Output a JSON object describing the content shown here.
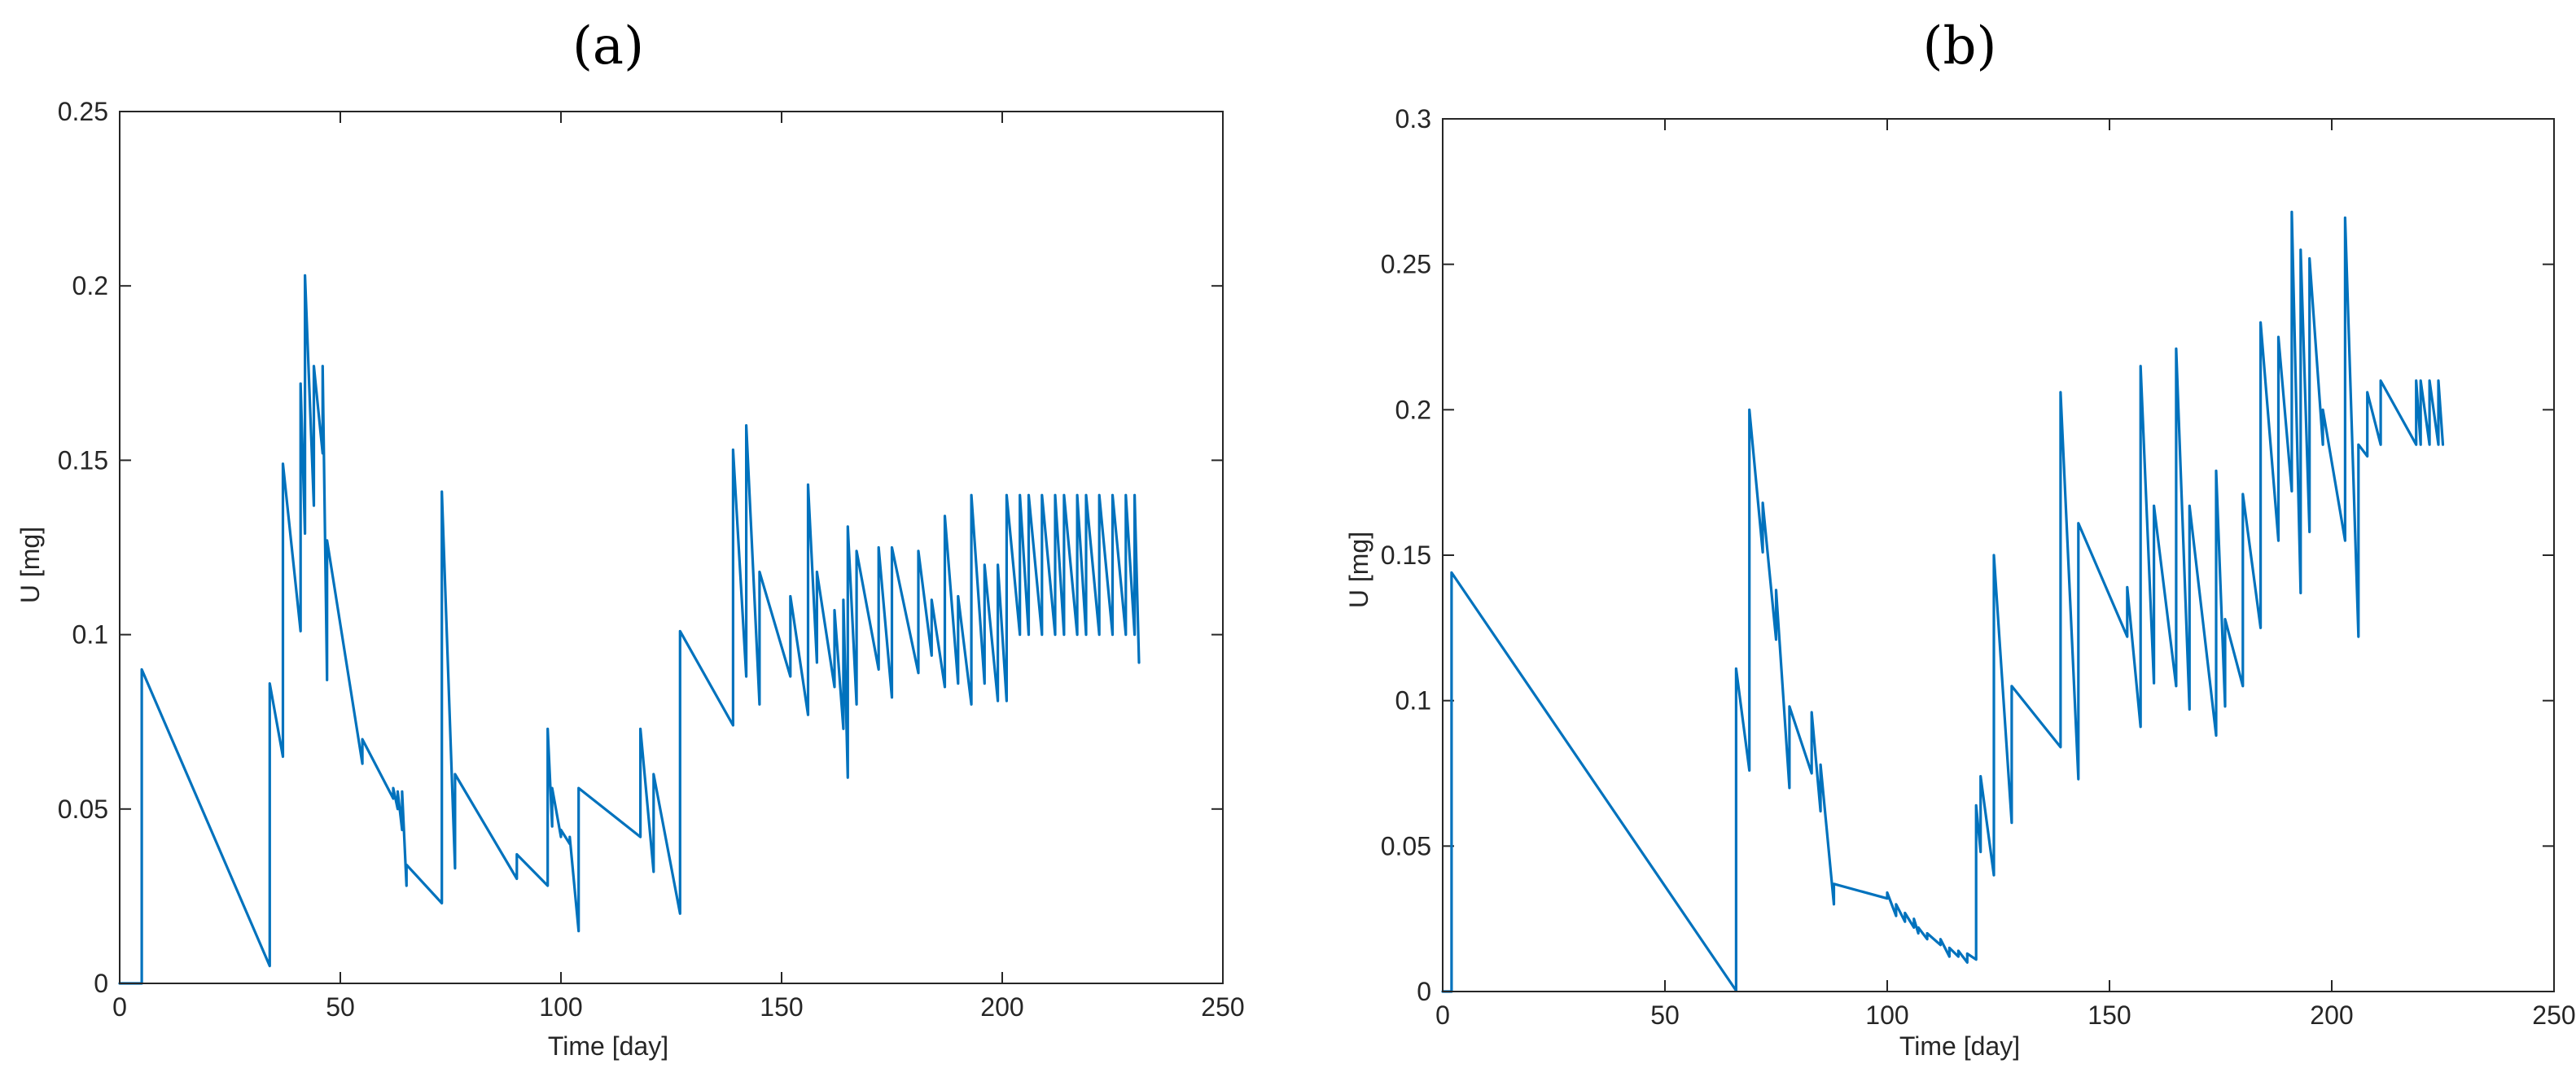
{
  "chart_data": [
    {
      "type": "line",
      "title": "(a)",
      "xlabel": "Time [day]",
      "ylabel": "U [mg]",
      "xlim": [
        0,
        250
      ],
      "ylim": [
        0,
        0.25
      ],
      "xticks": [
        0,
        50,
        100,
        150,
        200,
        250
      ],
      "yticks": [
        0,
        0.05,
        0.1,
        0.15,
        0.2,
        0.25
      ],
      "xtick_labels": [
        "0",
        "50",
        "100",
        "150",
        "200",
        "250"
      ],
      "ytick_labels": [
        "0",
        "0.05",
        "0.1",
        "0.15",
        "0.2",
        "0.25"
      ],
      "grid": false,
      "line_color": "#0072BD",
      "series": [
        {
          "x": [
            0,
            5,
            5,
            34,
            34,
            37,
            37,
            41,
            41,
            42,
            42,
            44,
            44,
            46,
            46,
            47,
            47,
            55,
            55,
            62,
            62,
            63,
            63,
            64,
            64,
            65,
            65,
            73,
            73,
            76,
            76,
            90,
            90,
            97,
            97,
            98,
            98,
            100,
            100,
            102,
            102,
            104,
            104,
            118,
            118,
            121,
            121,
            127,
            127,
            139,
            139,
            142,
            142,
            145,
            145,
            152,
            152,
            156,
            156,
            158,
            158,
            162,
            162,
            164,
            164,
            165,
            165,
            167,
            167,
            172,
            172,
            175,
            175,
            181,
            181,
            184,
            184,
            187,
            187,
            190,
            190,
            193,
            193,
            196,
            196,
            199,
            199,
            201,
            201,
            204,
            204,
            206,
            206,
            209,
            209,
            212,
            212,
            214,
            214,
            217,
            217,
            219,
            219,
            222,
            222,
            225,
            225,
            228,
            228,
            230,
            230,
            231
          ],
          "y": [
            0,
            0,
            0.09,
            0.005,
            0.086,
            0.065,
            0.149,
            0.101,
            0.172,
            0.129,
            0.203,
            0.137,
            0.177,
            0.152,
            0.177,
            0.087,
            0.127,
            0.063,
            0.07,
            0.053,
            0.056,
            0.05,
            0.055,
            0.044,
            0.055,
            0.028,
            0.034,
            0.023,
            0.141,
            0.033,
            0.06,
            0.03,
            0.037,
            0.028,
            0.073,
            0.045,
            0.056,
            0.042,
            0.044,
            0.04,
            0.042,
            0.015,
            0.056,
            0.042,
            0.073,
            0.032,
            0.06,
            0.02,
            0.101,
            0.074,
            0.153,
            0.088,
            0.16,
            0.08,
            0.118,
            0.088,
            0.111,
            0.077,
            0.143,
            0.092,
            0.118,
            0.085,
            0.107,
            0.073,
            0.11,
            0.059,
            0.131,
            0.08,
            0.124,
            0.09,
            0.125,
            0.082,
            0.125,
            0.089,
            0.124,
            0.094,
            0.11,
            0.085,
            0.134,
            0.086,
            0.111,
            0.08,
            0.14,
            0.086,
            0.12,
            0.081,
            0.12,
            0.081,
            0.14,
            0.1,
            0.14,
            0.1,
            0.14,
            0.1,
            0.14,
            0.1,
            0.14,
            0.1,
            0.14,
            0.1,
            0.14,
            0.1,
            0.14,
            0.1,
            0.14,
            0.1,
            0.14,
            0.1,
            0.14,
            0.1,
            0.14,
            0.092
          ]
        }
      ]
    },
    {
      "type": "line",
      "title": "(b)",
      "xlabel": "Time [day]",
      "ylabel": "U [mg]",
      "xlim": [
        0,
        250
      ],
      "ylim": [
        0,
        0.3
      ],
      "xticks": [
        0,
        50,
        100,
        150,
        200,
        250
      ],
      "yticks": [
        0,
        0.05,
        0.1,
        0.15,
        0.2,
        0.25,
        0.3
      ],
      "xtick_labels": [
        "0",
        "50",
        "100",
        "150",
        "200",
        "250"
      ],
      "ytick_labels": [
        "0",
        "0.05",
        "0.1",
        "0.15",
        "0.2",
        "0.25",
        "0.3"
      ],
      "grid": false,
      "line_color": "#0072BD",
      "series": [
        {
          "x": [
            0,
            2,
            2,
            66,
            66,
            69,
            69,
            72,
            72,
            75,
            75,
            78,
            78,
            83,
            83,
            85,
            85,
            88,
            88,
            100,
            100,
            102,
            102,
            104,
            104,
            106,
            106,
            107,
            107,
            109,
            109,
            112,
            112,
            114,
            114,
            116,
            116,
            118,
            118,
            120,
            120,
            121,
            121,
            124,
            124,
            128,
            128,
            139,
            139,
            143,
            143,
            154,
            154,
            157,
            157,
            160,
            160,
            165,
            165,
            168,
            168,
            174,
            174,
            176,
            176,
            180,
            180,
            184,
            184,
            188,
            188,
            191,
            191,
            193,
            193,
            195,
            195,
            198,
            198,
            203,
            203,
            206,
            206,
            208,
            208,
            211,
            211,
            219,
            219,
            220,
            220,
            222,
            222,
            224,
            224,
            225
          ],
          "y": [
            0,
            0,
            0.144,
            0.0003,
            0.111,
            0.076,
            0.2,
            0.151,
            0.168,
            0.121,
            0.138,
            0.07,
            0.098,
            0.075,
            0.096,
            0.062,
            0.078,
            0.03,
            0.037,
            0.032,
            0.034,
            0.026,
            0.03,
            0.024,
            0.027,
            0.022,
            0.025,
            0.02,
            0.022,
            0.018,
            0.02,
            0.016,
            0.018,
            0.012,
            0.015,
            0.012,
            0.014,
            0.01,
            0.013,
            0.011,
            0.064,
            0.048,
            0.074,
            0.04,
            0.15,
            0.058,
            0.105,
            0.084,
            0.206,
            0.073,
            0.161,
            0.122,
            0.139,
            0.091,
            0.215,
            0.106,
            0.167,
            0.105,
            0.221,
            0.097,
            0.167,
            0.088,
            0.179,
            0.098,
            0.128,
            0.105,
            0.171,
            0.125,
            0.23,
            0.155,
            0.225,
            0.172,
            0.268,
            0.137,
            0.255,
            0.158,
            0.252,
            0.188,
            0.2,
            0.155,
            0.266,
            0.122,
            0.188,
            0.184,
            0.206,
            0.188,
            0.21,
            0.188,
            0.21,
            0.188,
            0.21,
            0.188,
            0.21,
            0.188,
            0.21,
            0.188
          ]
        }
      ]
    }
  ]
}
